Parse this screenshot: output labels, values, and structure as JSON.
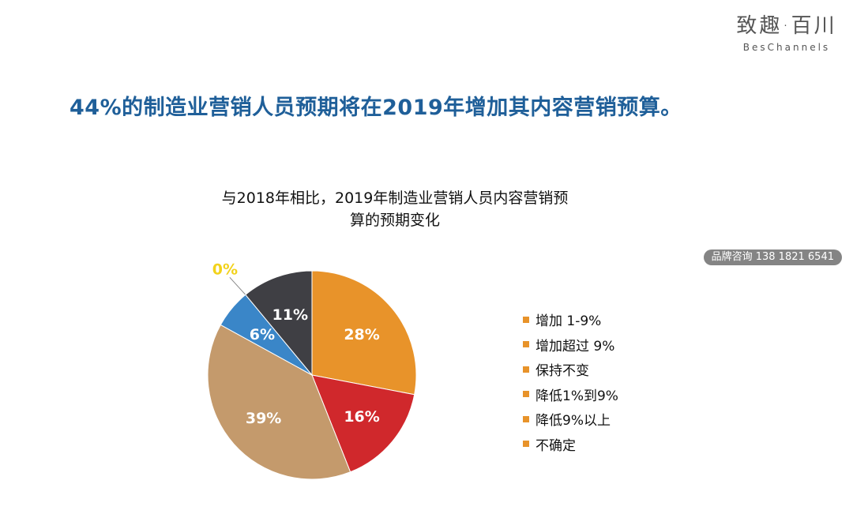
{
  "brand": {
    "name_cn": "致趣·百川",
    "name_en": "BesChannels"
  },
  "headline": "44%的制造业营销人员预期将在2019年增加其内容营销预算。",
  "watermark": "品牌咨询 138 1821 6541",
  "chart_data": {
    "type": "pie",
    "title_lines": [
      "与2018年相比，2019年制造业营销人员内容营销预",
      "算的预期变化"
    ],
    "legend_position": "right",
    "legend_swatch_color": "#e8932a",
    "slices": [
      {
        "label": "增加 1-9%",
        "value": 28,
        "display": "28%",
        "color": "#e8932a",
        "label_color": "#ffffff"
      },
      {
        "label": "增加超过 9%",
        "value": 16,
        "display": "16%",
        "color": "#d0282c",
        "label_color": "#ffffff"
      },
      {
        "label": "保持不变",
        "value": 39,
        "display": "39%",
        "color": "#c49a6c",
        "label_color": "#ffffff"
      },
      {
        "label": "降低1%到9%",
        "value": 6,
        "display": "6%",
        "color": "#3a86c8",
        "label_color": "#ffffff"
      },
      {
        "label": "降低9%以上",
        "value": 0,
        "display": "0%",
        "color": "#f2d21b",
        "label_color": "#f2d21b"
      },
      {
        "label": "不确定",
        "value": 11,
        "display": "11%",
        "color": "#3f3f44",
        "label_color": "#ffffff"
      }
    ]
  }
}
